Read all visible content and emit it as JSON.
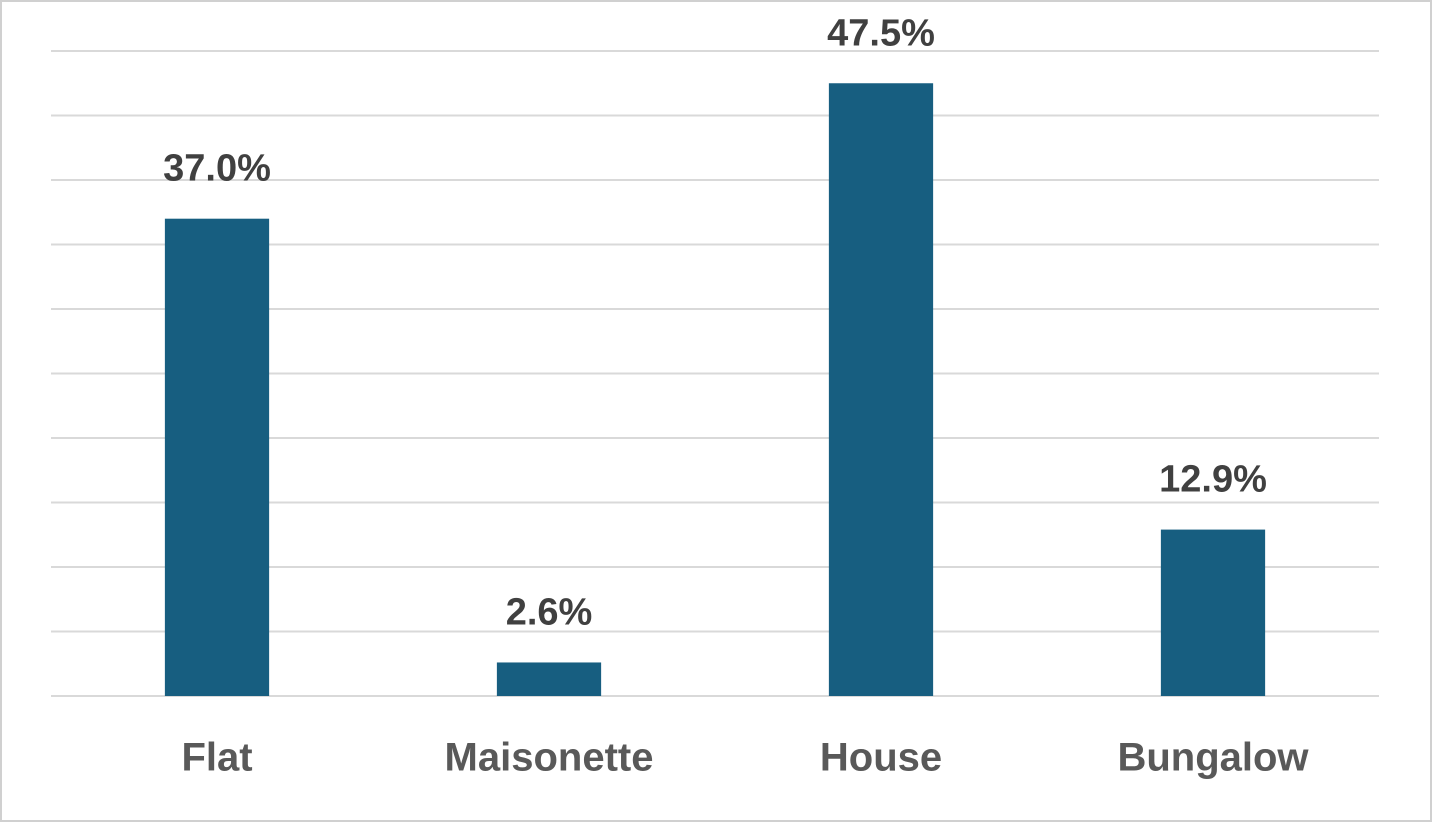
{
  "chart_data": {
    "type": "bar",
    "categories": [
      "Flat",
      "Maisonette",
      "House",
      "Bungalow"
    ],
    "values": [
      37.0,
      2.6,
      47.5,
      12.9
    ],
    "value_labels": [
      "37.0%",
      "2.6%",
      "47.5%",
      "12.9%"
    ],
    "color": "#175e80",
    "ylim": [
      0,
      50
    ],
    "yticks": [
      0,
      5,
      10,
      15,
      20,
      25,
      30,
      35,
      40,
      45,
      50
    ],
    "grid": true
  }
}
